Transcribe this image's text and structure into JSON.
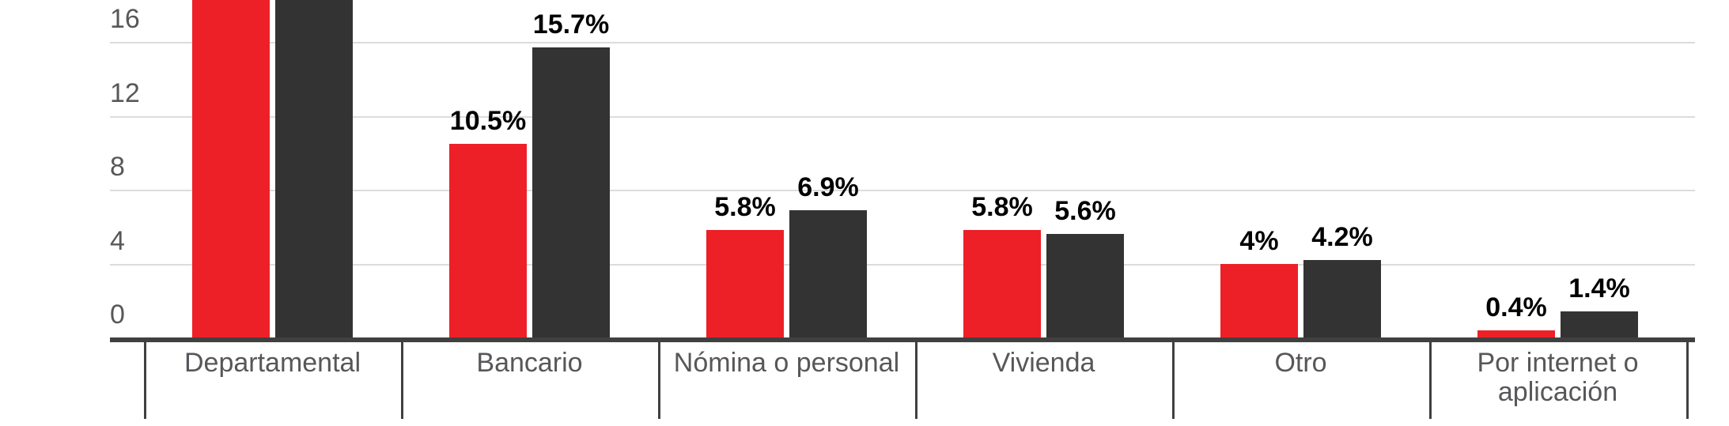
{
  "chart_data": {
    "type": "bar",
    "title": "",
    "xlabel": "",
    "ylabel": "",
    "categories": [
      "Departamental",
      "Bancario",
      "Nómina o personal",
      "Vivienda",
      "Otro",
      "Por internet o aplicación"
    ],
    "series": [
      {
        "name": "red-series",
        "color": "#ed2027",
        "values": [
          null,
          10.5,
          5.8,
          5.8,
          4,
          0.4
        ],
        "data_labels": [
          null,
          "10.5%",
          "5.8%",
          "5.8%",
          "4%",
          "0.4%"
        ]
      },
      {
        "name": "dark-series",
        "color": "#333333",
        "values": [
          null,
          15.7,
          6.9,
          5.6,
          4.2,
          1.4
        ],
        "data_labels": [
          null,
          "15.7%",
          "6.9%",
          "5.6%",
          "4.2%",
          "1.4%"
        ]
      }
    ],
    "clipped_categories": [
      "Departamental"
    ],
    "y_axis": {
      "tick_labels": [
        "0",
        "4",
        "8",
        "12",
        "16"
      ],
      "tick_values": [
        0,
        4,
        8,
        12,
        16
      ],
      "visible_max": 16,
      "unit": "percent"
    },
    "legend": "not visible (cropped)",
    "grid": "horizontal gridlines on",
    "colors": {
      "grid_line": "#dcdcdc",
      "axis_line": "#404040",
      "tick_text": "#58585a",
      "category_text": "#57575a",
      "value_text": "#000000",
      "background": "#ffffff"
    }
  }
}
